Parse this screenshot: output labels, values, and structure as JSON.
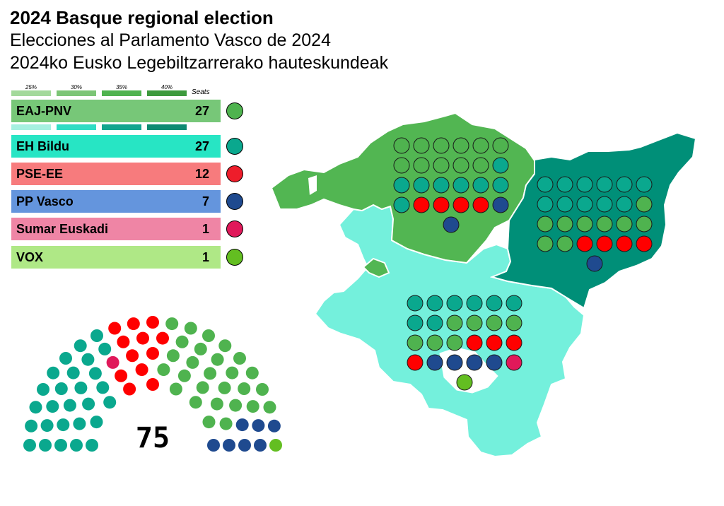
{
  "title": {
    "line1": "2024 Basque regional election",
    "line2": "Elecciones al Parlamento Vasco de 2024",
    "line3": "2024ko Eusko Legebiltzarrerako hauteskundeak"
  },
  "scale": {
    "labels": [
      "25%",
      "30%",
      "35%",
      "40%"
    ],
    "seats_label": "Seats",
    "green_shades": [
      "#a3d99b",
      "#7cc576",
      "#4fb34f",
      "#3d9a3d"
    ],
    "teal_shades": [
      "#a6f0e0",
      "#2fdcc4",
      "#12a58f",
      "#0d8a72"
    ]
  },
  "parties": [
    {
      "name": "EAJ-PNV",
      "seats": "27",
      "bar_color": "#77c778",
      "dot_color": "#4fb34f"
    },
    {
      "name": "EH Bildu",
      "seats": "27",
      "bar_color": "#27e5c4",
      "dot_color": "#0aa88e"
    },
    {
      "name": "PSE-EE",
      "seats": "12",
      "bar_color": "#f77b7d",
      "dot_color": "#ee1d2b"
    },
    {
      "name": "PP Vasco",
      "seats": "7",
      "bar_color": "#6495dd",
      "dot_color": "#1f4a8f"
    },
    {
      "name": "Sumar Euskadi",
      "seats": "1",
      "bar_color": "#ef85a5",
      "dot_color": "#e0195a"
    },
    {
      "name": "VOX",
      "seats": "1",
      "bar_color": "#afe886",
      "dot_color": "#63be21"
    }
  ],
  "parliament": {
    "total": "75",
    "seat_colors": {
      "bildu": "#0aa88e",
      "sumar": "#e0195a",
      "pse": "#ff0000",
      "pnv": "#4fb34f",
      "pp": "#1f4a8f",
      "vox": "#63be21"
    }
  },
  "map": {
    "provinces": [
      {
        "name": "Bizkaia",
        "winner": "EAJ-PNV",
        "fill": "#52b652"
      },
      {
        "name": "Gipuzkoa",
        "winner": "EH Bildu",
        "fill": "#008f78"
      },
      {
        "name": "Araba",
        "winner": "EH Bildu",
        "fill": "#74f0dc"
      }
    ],
    "seat_grids": [
      {
        "province": "Bizkaia",
        "rows": [
          [
            "pnv",
            "pnv",
            "pnv",
            "pnv",
            "pnv",
            "pnv"
          ],
          [
            "pnv",
            "pnv",
            "pnv",
            "pnv",
            "pnv",
            "bildu"
          ],
          [
            "bildu",
            "bildu",
            "bildu",
            "bildu",
            "bildu",
            "bildu"
          ],
          [
            "bildu",
            "pse",
            "pse",
            "pse",
            "pse",
            "pp"
          ],
          [
            "pp"
          ]
        ]
      },
      {
        "province": "Gipuzkoa",
        "rows": [
          [
            "bildu",
            "bildu",
            "bildu",
            "bildu",
            "bildu",
            "bildu"
          ],
          [
            "bildu",
            "bildu",
            "bildu",
            "bildu",
            "bildu",
            "pnv"
          ],
          [
            "pnv",
            "pnv",
            "pnv",
            "pnv",
            "pnv",
            "pnv"
          ],
          [
            "pnv",
            "pnv",
            "pse",
            "pse",
            "pse",
            "pse"
          ],
          [
            "pp"
          ]
        ]
      },
      {
        "province": "Araba",
        "rows": [
          [
            "bildu",
            "bildu",
            "bildu",
            "bildu",
            "bildu",
            "bildu"
          ],
          [
            "bildu",
            "bildu",
            "pnv",
            "pnv",
            "pnv",
            "pnv"
          ],
          [
            "pnv",
            "pnv",
            "pnv",
            "pse",
            "pse",
            "pse"
          ],
          [
            "pse",
            "pp",
            "pp",
            "pp",
            "pp",
            "sumar"
          ],
          [
            "vox"
          ]
        ]
      }
    ]
  }
}
